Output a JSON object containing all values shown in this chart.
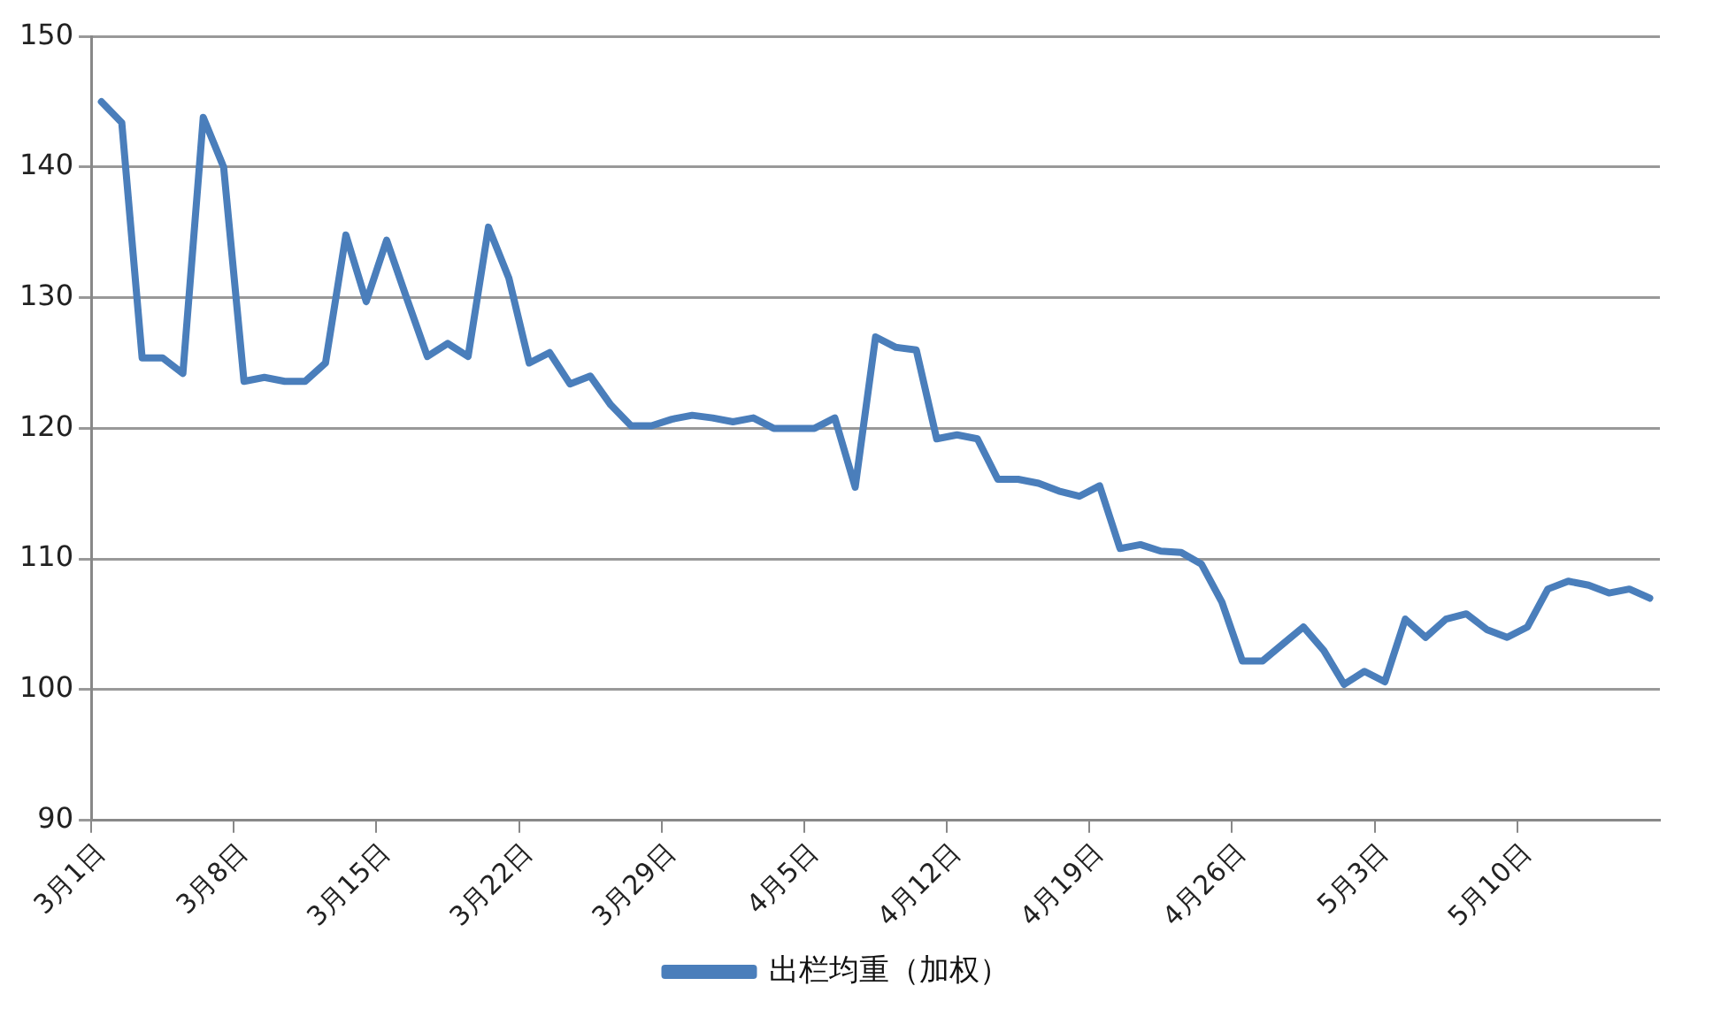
{
  "chart_data": {
    "type": "line",
    "categories": [
      "3月1日",
      null,
      null,
      null,
      null,
      null,
      null,
      "3月8日",
      null,
      null,
      null,
      null,
      null,
      null,
      "3月15日",
      null,
      null,
      null,
      null,
      null,
      null,
      "3月22日",
      null,
      null,
      null,
      null,
      null,
      null,
      "3月29日",
      null,
      null,
      null,
      null,
      null,
      null,
      "4月5日",
      null,
      null,
      null,
      null,
      null,
      null,
      "4月12日",
      null,
      null,
      null,
      null,
      null,
      null,
      "4月19日",
      null,
      null,
      null,
      null,
      null,
      null,
      "4月26日",
      null,
      null,
      null,
      null,
      null,
      null,
      "5月3日",
      null,
      null,
      null,
      null,
      null,
      null,
      "5月10日",
      null,
      null,
      null,
      null,
      null,
      null
    ],
    "series": [
      {
        "name": "出栏均重（加权）",
        "color": "#4a7ebb",
        "values": [
          145.0,
          143.4,
          125.4,
          125.4,
          124.2,
          143.8,
          140.0,
          123.6,
          123.9,
          123.6,
          123.6,
          125.0,
          134.8,
          129.7,
          134.4,
          129.9,
          125.5,
          126.5,
          125.5,
          135.4,
          131.5,
          125.0,
          125.8,
          123.4,
          124.0,
          121.8,
          120.2,
          120.2,
          120.7,
          121.0,
          120.8,
          120.5,
          120.8,
          120.0,
          120.0,
          120.0,
          120.8,
          115.5,
          127.0,
          126.2,
          126.0,
          119.2,
          119.5,
          119.2,
          116.1,
          116.1,
          115.8,
          115.2,
          114.8,
          115.6,
          110.8,
          111.1,
          110.6,
          110.5,
          109.6,
          106.7,
          102.2,
          102.2,
          103.5,
          104.8,
          103.0,
          100.4,
          101.4,
          100.6,
          105.4,
          104.0,
          105.4,
          105.8,
          104.6,
          104.0,
          104.8,
          107.7,
          108.3,
          108.0,
          107.4,
          107.7,
          107.0
        ]
      }
    ],
    "ylim": [
      90,
      150
    ],
    "yticks": [
      90,
      100,
      110,
      120,
      130,
      140,
      150
    ],
    "grid": "y",
    "legend": "bottom",
    "marker": "none",
    "line_style": "solid"
  }
}
